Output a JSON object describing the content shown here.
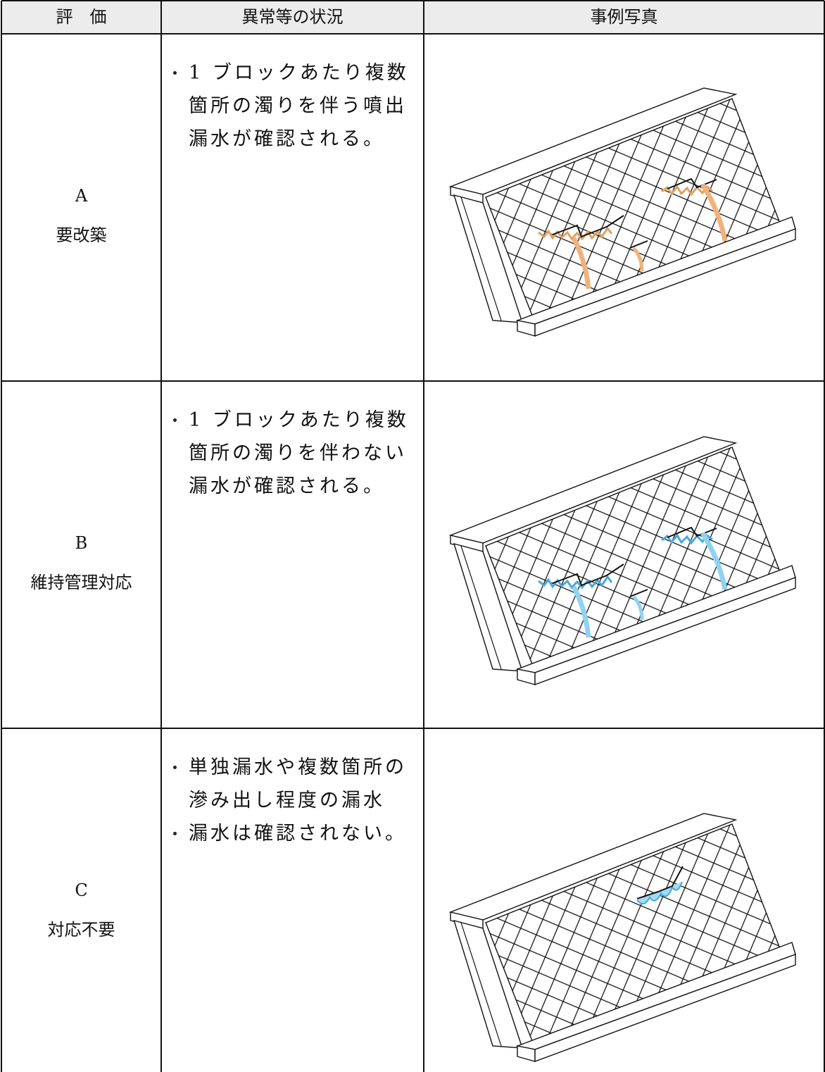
{
  "table": {
    "headers": [
      "評　価",
      "異常等の状況",
      "事例写真"
    ],
    "rows": [
      {
        "grade": "A",
        "label": "要改築",
        "conditions": [
          "1 ブロックあたり複数箇所の濁りを伴う噴出漏水が確認される。"
        ]
      },
      {
        "grade": "B",
        "label": "維持管理対応",
        "conditions": [
          "1 ブロックあたり複数箇所の濁りを伴わない漏水が確認される。"
        ]
      },
      {
        "grade": "C",
        "label": "対応不要",
        "conditions": [
          "単独漏水や複数箇所の滲み出し程度の漏水",
          "漏水は確認されない。"
        ]
      }
    ]
  }
}
